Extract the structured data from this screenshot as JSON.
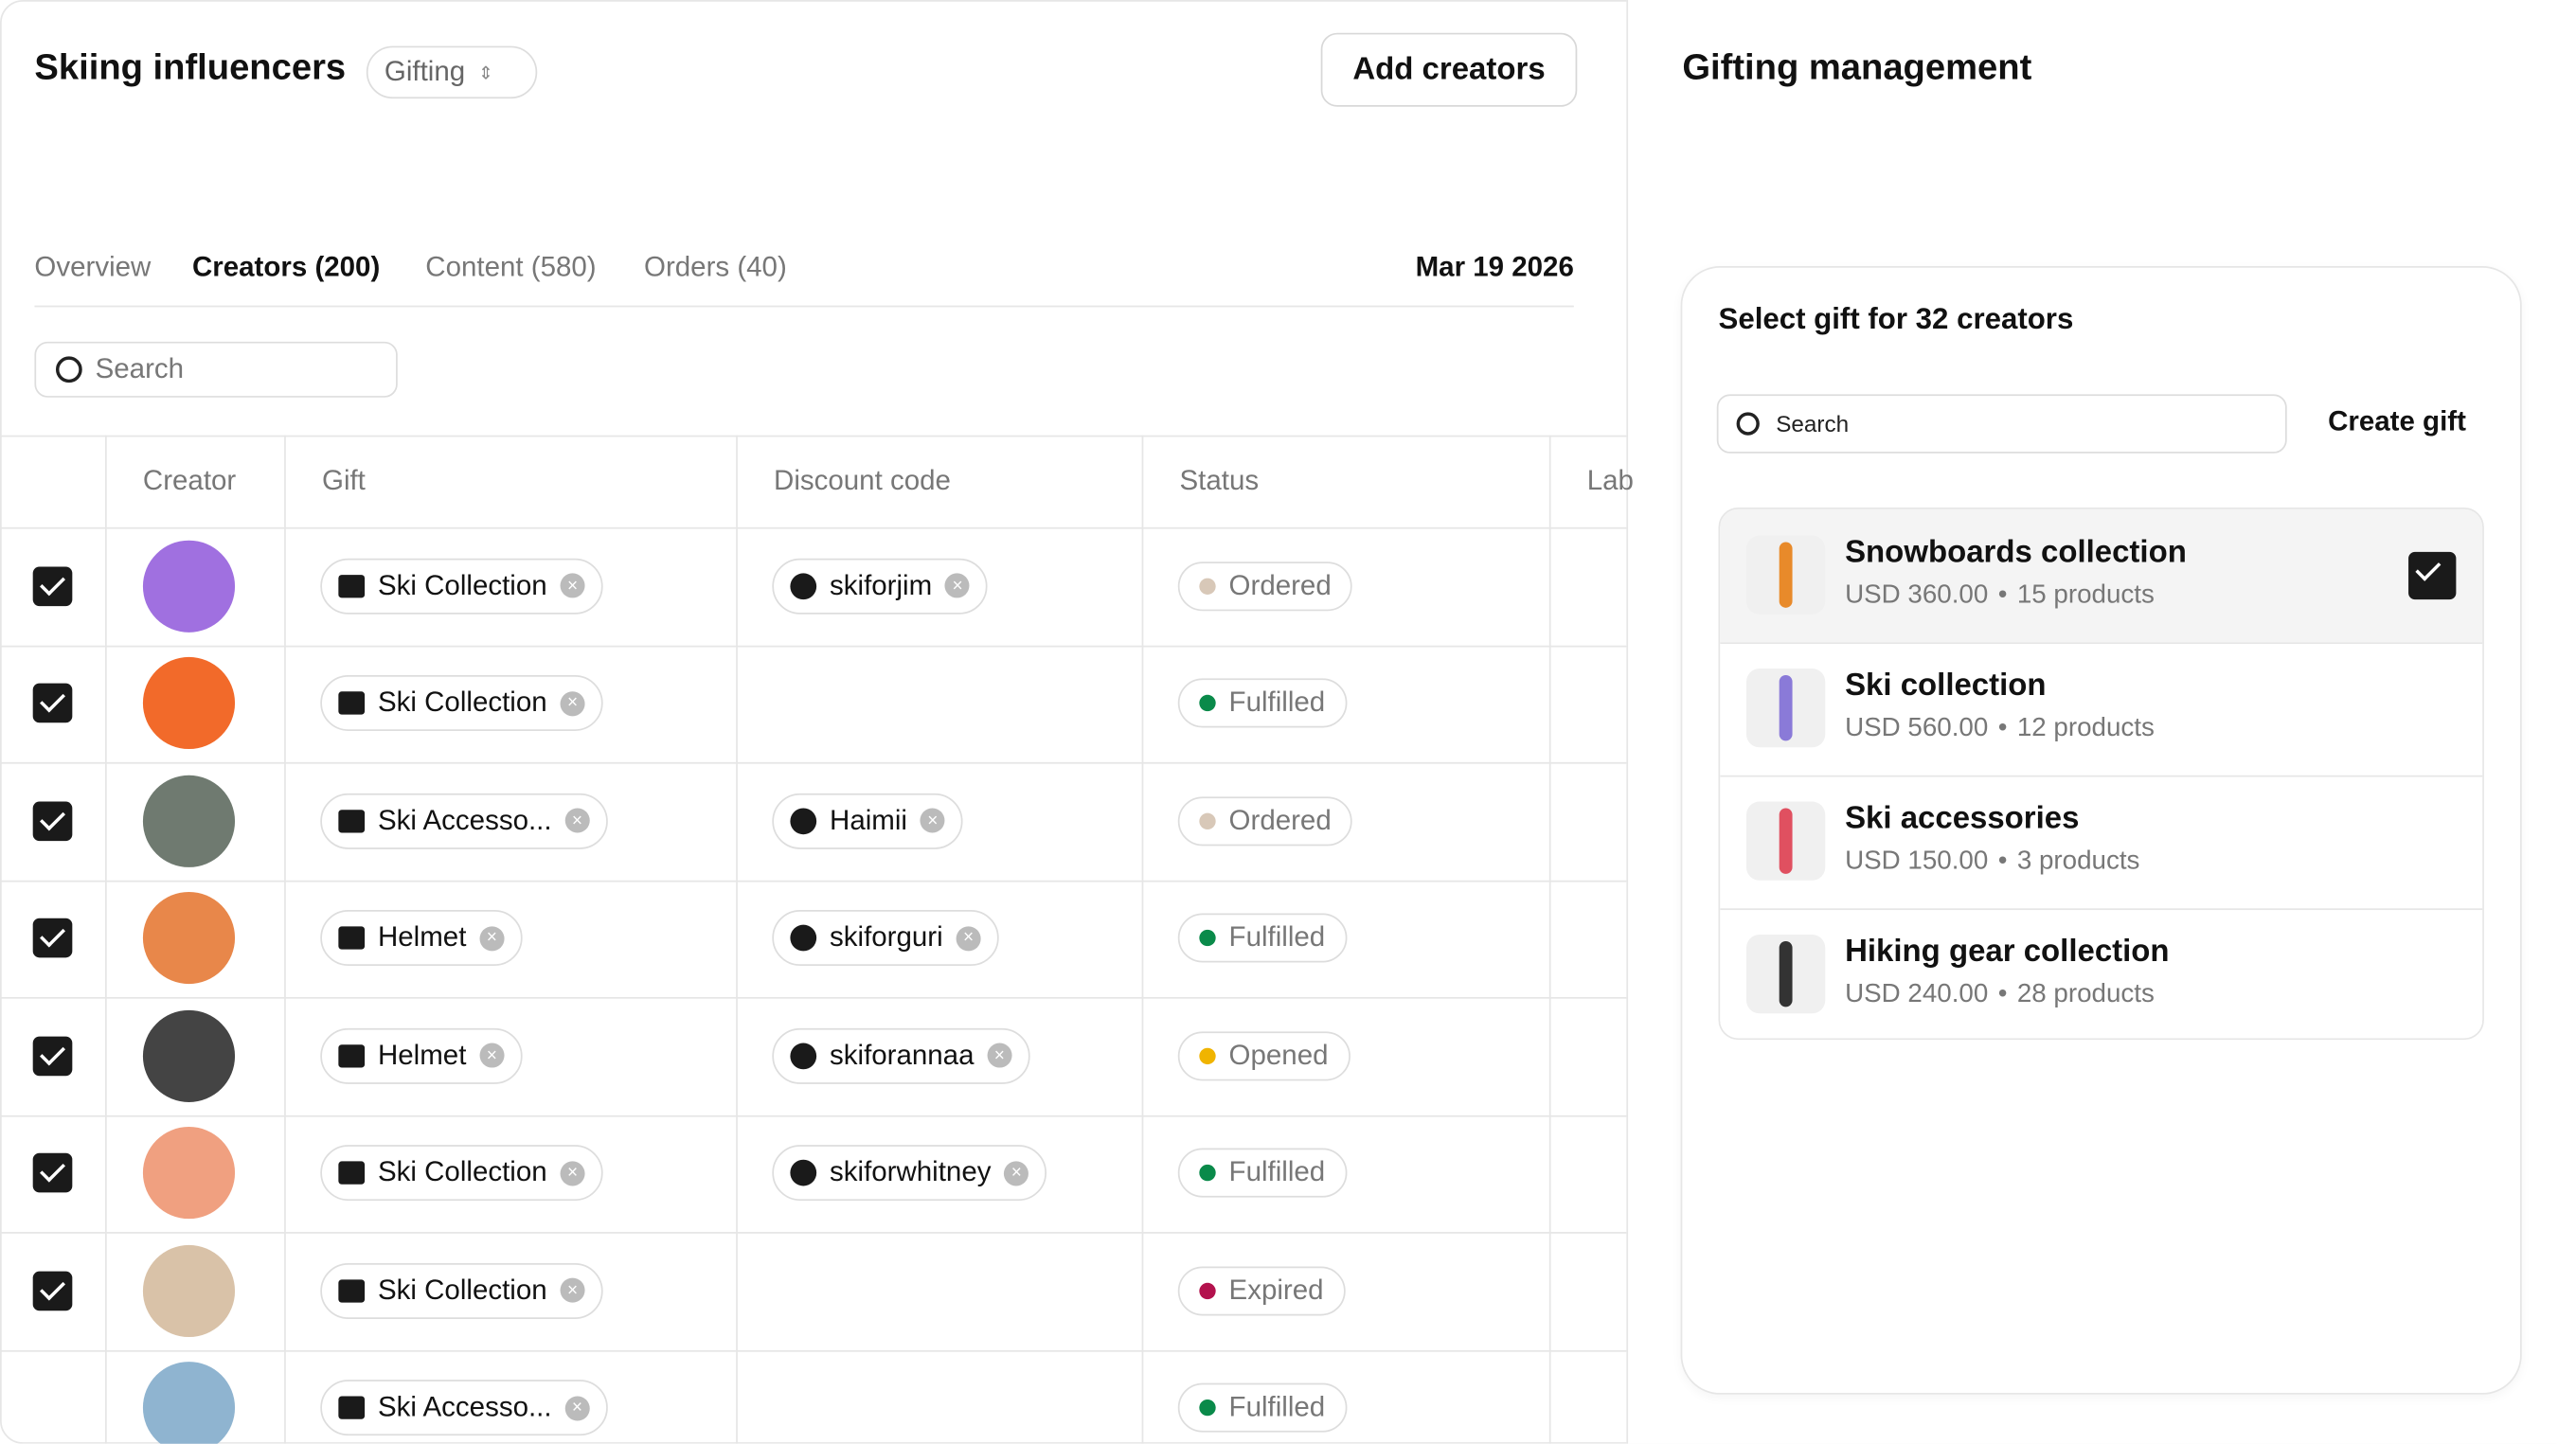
{
  "header": {
    "title": "Skiing influencers",
    "view": "Gifting",
    "button": "Add creators"
  },
  "tabs": [
    "Overview",
    "Creators (200)",
    "Content (580)",
    "Orders (40)"
  ],
  "active_tab": 1,
  "date": "Mar 19 2026",
  "search": "Search",
  "table": {
    "columns": [
      "Creator",
      "Gift",
      "Discount code",
      "Status",
      "Lab"
    ],
    "rows": [
      {
        "checked": true,
        "avatar": "#a070e0",
        "gift": "Ski Collection",
        "code": "skiforjim",
        "status": "Ordered",
        "dot": "#d8c8b8"
      },
      {
        "checked": true,
        "avatar": "#f26a2a",
        "gift": "Ski Collection",
        "code": null,
        "status": "Fulfilled",
        "dot": "#0a8a4a"
      },
      {
        "checked": true,
        "avatar": "#6f7a70",
        "gift": "Ski Accesso...",
        "code": "Haimii",
        "status": "Ordered",
        "dot": "#d8c8b8"
      },
      {
        "checked": true,
        "avatar": "#e8874a",
        "gift": "Helmet",
        "code": "skiforguri",
        "status": "Fulfilled",
        "dot": "#0a8a4a"
      },
      {
        "checked": true,
        "avatar": "#444444",
        "gift": "Helmet",
        "code": "skiforannaa",
        "status": "Opened",
        "dot": "#f0b400"
      },
      {
        "checked": true,
        "avatar": "#f0a080",
        "gift": "Ski Collection",
        "code": "skiforwhitney",
        "status": "Fulfilled",
        "dot": "#0a8a4a"
      },
      {
        "checked": true,
        "avatar": "#d9c2a8",
        "gift": "Ski Collection",
        "code": null,
        "status": "Expired",
        "dot": "#b3124d"
      },
      {
        "checked": false,
        "avatar": "#8fb4d0",
        "gift": "Ski Accesso...",
        "code": null,
        "status": "Fulfilled",
        "dot": "#0a8a4a"
      }
    ]
  },
  "panel": {
    "title": "Gifting management",
    "card_title": "Select gift for 32 creators",
    "search": "Search",
    "create": "Create gift",
    "gifts": [
      {
        "name": "Snowboards collection",
        "price": "USD 360.00",
        "products": "15 products",
        "selected": true,
        "thumb": "#e88a2a"
      },
      {
        "name": "Ski collection",
        "price": "USD 560.00",
        "products": "12 products",
        "selected": false,
        "thumb": "#8a7ad8"
      },
      {
        "name": "Ski accessories",
        "price": "USD 150.00",
        "products": "3 products",
        "selected": false,
        "thumb": "#e05060"
      },
      {
        "name": "Hiking gear collection",
        "price": "USD 240.00",
        "products": "28 products",
        "selected": false,
        "thumb": "#333333"
      }
    ]
  }
}
